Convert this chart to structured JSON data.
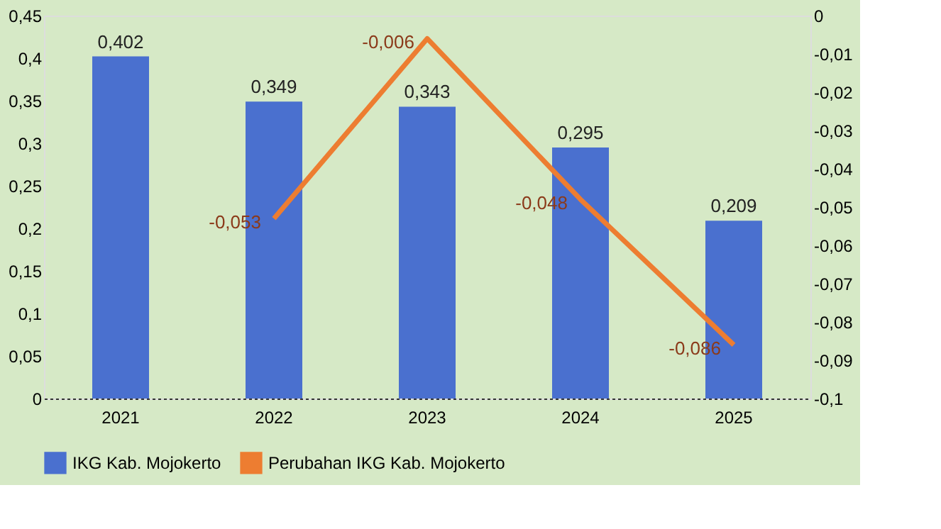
{
  "chart_data": {
    "type": "bar",
    "categories": [
      "2021",
      "2022",
      "2023",
      "2024",
      "2025"
    ],
    "series": [
      {
        "name": "IKG Kab. Mojokerto",
        "color": "#4a70cf",
        "values": [
          0.402,
          0.349,
          0.343,
          0.295,
          0.209
        ],
        "value_labels": [
          "0,402",
          "0,349",
          "0,343",
          "0,295",
          "0,209"
        ]
      },
      {
        "name": "Perubahan IKG Kab. Mojokerto",
        "type": "line",
        "axis": "y2",
        "color": "#ed7d31",
        "values": [
          null,
          -0.053,
          -0.006,
          -0.048,
          -0.086
        ],
        "value_labels": [
          null,
          "-0,053",
          "-0,006",
          "-0,048",
          "-0,086"
        ]
      }
    ],
    "ylim": [
      0,
      0.45
    ],
    "yticks": [
      0,
      {
        "value": 0.05,
        "label": "0,05"
      },
      {
        "value": 0.1,
        "label": "0,1"
      },
      {
        "value": 0.15,
        "label": "0,15"
      },
      {
        "value": 0.2,
        "label": "0,2"
      },
      {
        "value": 0.25,
        "label": "0,25"
      },
      {
        "value": 0.3,
        "label": "0,3"
      },
      {
        "value": 0.35,
        "label": "0,35"
      },
      {
        "value": 0.4,
        "label": "0,4"
      },
      {
        "value": 0.45,
        "label": "0,45"
      }
    ],
    "y2lim": [
      -0.1,
      0
    ],
    "y2ticks": [
      0,
      {
        "value": -0.01,
        "label": "-0,01"
      },
      {
        "value": -0.02,
        "label": "-0,02"
      },
      {
        "value": -0.03,
        "label": "-0,03"
      },
      {
        "value": -0.04,
        "label": "-0,04"
      },
      {
        "value": -0.05,
        "label": "-0,05"
      },
      {
        "value": -0.06,
        "label": "-0,06"
      },
      {
        "value": -0.07,
        "label": "-0,07"
      },
      {
        "value": -0.08,
        "label": "-0,08"
      },
      {
        "value": -0.09,
        "label": "-0,09"
      },
      {
        "value": -0.1,
        "label": "-0,1"
      }
    ],
    "grid": false,
    "legend": "bottom",
    "line_style": "solid",
    "marker": "none"
  }
}
